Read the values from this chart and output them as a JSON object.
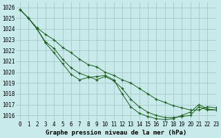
{
  "title": "Graphe pression niveau de la mer (hPa)",
  "background_color": "#c8eaea",
  "grid_color": "#a8c8c8",
  "line_color": "#1a5c1a",
  "xlim": [
    -0.5,
    23
  ],
  "ylim": [
    1015.5,
    1026.5
  ],
  "xticks": [
    0,
    1,
    2,
    3,
    4,
    5,
    6,
    7,
    8,
    9,
    10,
    11,
    12,
    13,
    14,
    15,
    16,
    17,
    18,
    19,
    20,
    21,
    22,
    23
  ],
  "ytick_labels": [
    "1016",
    "1017",
    "1018",
    "1019",
    "1020",
    "1021",
    "1022",
    "1023",
    "1024",
    "1025",
    "1026"
  ],
  "yticks": [
    1016,
    1017,
    1018,
    1019,
    1020,
    1021,
    1022,
    1023,
    1024,
    1025,
    1026
  ],
  "series": [
    [
      1025.8,
      1025.0,
      1024.1,
      1023.5,
      1023.0,
      1022.3,
      1021.8,
      1021.2,
      1020.7,
      1020.5,
      1020.0,
      1019.7,
      1019.3,
      1019.0,
      1018.5,
      1018.0,
      1017.5,
      1017.2,
      1016.9,
      1016.7,
      1016.5,
      1016.5,
      1016.8,
      1016.7
    ],
    [
      1025.8,
      1025.0,
      1024.0,
      1022.8,
      1022.2,
      1021.2,
      1020.4,
      1019.9,
      1019.6,
      1019.3,
      1019.6,
      1019.2,
      1018.5,
      1017.5,
      1016.8,
      1016.3,
      1016.0,
      1015.8,
      1015.8,
      1015.9,
      1016.0,
      1016.8,
      1016.5,
      1016.5
    ],
    [
      1025.8,
      1025.0,
      1024.0,
      1022.7,
      1021.8,
      1020.8,
      1019.8,
      1019.3,
      1019.5,
      1019.6,
      1019.7,
      1019.3,
      1018.0,
      1016.8,
      1016.2,
      1015.9,
      1015.7,
      1015.6,
      1015.7,
      1016.0,
      1016.3,
      1017.0,
      1016.6,
      1016.5
    ]
  ],
  "title_fontsize": 6.5,
  "tick_fontsize": 5.5
}
